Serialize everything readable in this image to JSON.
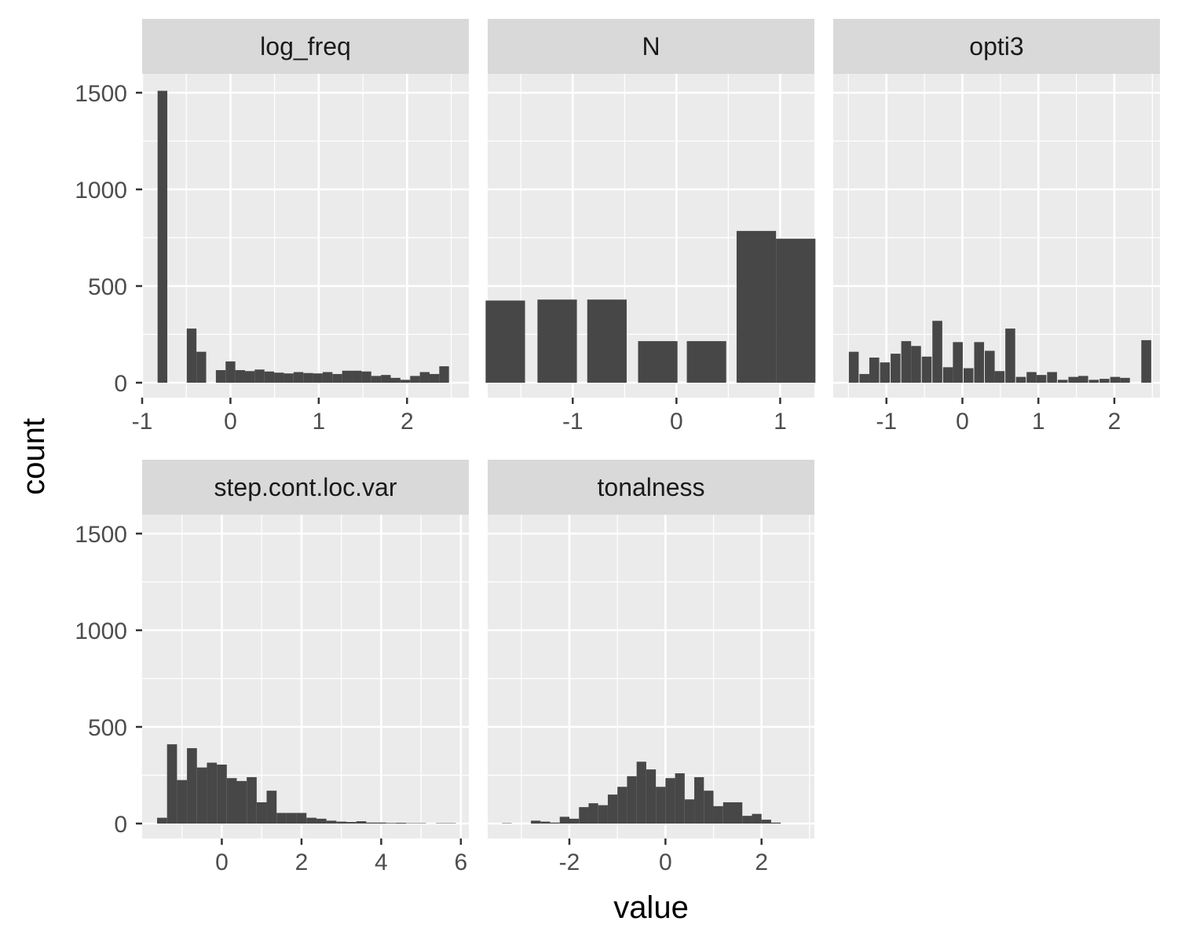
{
  "chart_data": {
    "type": "bar",
    "subtype": "faceted-histogram",
    "xlabel": "value",
    "ylabel": "count",
    "ylim": [
      0,
      1500
    ],
    "yticks": [
      0,
      500,
      1000,
      1500
    ],
    "grid": true,
    "colors": {
      "bar": "#474747",
      "panel_bg": "#ebebeb",
      "strip_bg": "#d9d9d9",
      "grid": "#ffffff",
      "tick_text": "#4d4d4d"
    },
    "facets": [
      {
        "name": "log_freq",
        "xlim": [
          -1,
          2.7
        ],
        "xticks": [
          -1,
          0,
          1,
          2
        ],
        "xtick_labels": [
          "-1",
          "0",
          "1",
          "2"
        ],
        "bins": [
          {
            "x": -0.77,
            "count": 1510
          },
          {
            "x": -0.44,
            "count": 280
          },
          {
            "x": -0.33,
            "count": 160
          },
          {
            "x": -0.11,
            "count": 65
          },
          {
            "x": 0.0,
            "count": 110
          },
          {
            "x": 0.11,
            "count": 65
          },
          {
            "x": 0.22,
            "count": 60
          },
          {
            "x": 0.33,
            "count": 68
          },
          {
            "x": 0.44,
            "count": 58
          },
          {
            "x": 0.55,
            "count": 52
          },
          {
            "x": 0.66,
            "count": 48
          },
          {
            "x": 0.77,
            "count": 55
          },
          {
            "x": 0.88,
            "count": 50
          },
          {
            "x": 0.99,
            "count": 48
          },
          {
            "x": 1.1,
            "count": 55
          },
          {
            "x": 1.21,
            "count": 45
          },
          {
            "x": 1.32,
            "count": 62
          },
          {
            "x": 1.43,
            "count": 62
          },
          {
            "x": 1.54,
            "count": 58
          },
          {
            "x": 1.65,
            "count": 35
          },
          {
            "x": 1.76,
            "count": 40
          },
          {
            "x": 1.87,
            "count": 25
          },
          {
            "x": 1.98,
            "count": 15
          },
          {
            "x": 2.09,
            "count": 35
          },
          {
            "x": 2.2,
            "count": 55
          },
          {
            "x": 2.31,
            "count": 45
          },
          {
            "x": 2.42,
            "count": 85
          }
        ]
      },
      {
        "name": "N",
        "xlim": [
          -1.82,
          1.33
        ],
        "xticks": [
          -1,
          0,
          1
        ],
        "xtick_labels": [
          "-1",
          "0",
          "1"
        ],
        "bins": [
          {
            "x": -1.65,
            "count": 425
          },
          {
            "x": -1.15,
            "count": 430
          },
          {
            "x": -0.67,
            "count": 430
          },
          {
            "x": -0.18,
            "count": 215
          },
          {
            "x": 0.29,
            "count": 215
          },
          {
            "x": 0.77,
            "count": 785
          },
          {
            "x": 1.15,
            "count": 745
          }
        ]
      },
      {
        "name": "opti3",
        "xlim": [
          -1.7,
          2.6
        ],
        "xticks": [
          -1,
          0,
          1,
          2
        ],
        "xtick_labels": [
          "-1",
          "0",
          "1",
          "2"
        ],
        "bins": [
          {
            "x": -1.43,
            "count": 160
          },
          {
            "x": -1.29,
            "count": 45
          },
          {
            "x": -1.16,
            "count": 130
          },
          {
            "x": -1.02,
            "count": 105
          },
          {
            "x": -0.88,
            "count": 150
          },
          {
            "x": -0.74,
            "count": 215
          },
          {
            "x": -0.61,
            "count": 190
          },
          {
            "x": -0.47,
            "count": 135
          },
          {
            "x": -0.33,
            "count": 320
          },
          {
            "x": -0.19,
            "count": 80
          },
          {
            "x": -0.06,
            "count": 210
          },
          {
            "x": 0.08,
            "count": 75
          },
          {
            "x": 0.22,
            "count": 210
          },
          {
            "x": 0.36,
            "count": 165
          },
          {
            "x": 0.49,
            "count": 60
          },
          {
            "x": 0.63,
            "count": 280
          },
          {
            "x": 0.77,
            "count": 30
          },
          {
            "x": 0.91,
            "count": 55
          },
          {
            "x": 1.04,
            "count": 40
          },
          {
            "x": 1.18,
            "count": 55
          },
          {
            "x": 1.32,
            "count": 15
          },
          {
            "x": 1.46,
            "count": 30
          },
          {
            "x": 1.59,
            "count": 35
          },
          {
            "x": 1.73,
            "count": 15
          },
          {
            "x": 1.87,
            "count": 20
          },
          {
            "x": 2.01,
            "count": 30
          },
          {
            "x": 2.14,
            "count": 25
          },
          {
            "x": 2.42,
            "count": 220
          }
        ]
      },
      {
        "name": "step.cont.loc.var",
        "xlim": [
          -2.0,
          6.2
        ],
        "xticks": [
          0,
          2,
          4,
          6
        ],
        "xtick_labels": [
          "0",
          "2",
          "4",
          "6"
        ],
        "bins": [
          {
            "x": -1.5,
            "count": 30
          },
          {
            "x": -1.25,
            "count": 410
          },
          {
            "x": -1.0,
            "count": 225
          },
          {
            "x": -0.75,
            "count": 390
          },
          {
            "x": -0.5,
            "count": 290
          },
          {
            "x": -0.25,
            "count": 315
          },
          {
            "x": 0.0,
            "count": 305
          },
          {
            "x": 0.25,
            "count": 235
          },
          {
            "x": 0.5,
            "count": 220
          },
          {
            "x": 0.75,
            "count": 240
          },
          {
            "x": 1.0,
            "count": 110
          },
          {
            "x": 1.25,
            "count": 170
          },
          {
            "x": 1.5,
            "count": 55
          },
          {
            "x": 1.75,
            "count": 55
          },
          {
            "x": 2.0,
            "count": 55
          },
          {
            "x": 2.25,
            "count": 30
          },
          {
            "x": 2.5,
            "count": 25
          },
          {
            "x": 2.75,
            "count": 15
          },
          {
            "x": 3.0,
            "count": 10
          },
          {
            "x": 3.25,
            "count": 8
          },
          {
            "x": 3.5,
            "count": 12
          },
          {
            "x": 3.75,
            "count": 5
          },
          {
            "x": 4.0,
            "count": 5
          },
          {
            "x": 4.25,
            "count": 3
          },
          {
            "x": 4.5,
            "count": 4
          },
          {
            "x": 4.75,
            "count": 2
          },
          {
            "x": 5.0,
            "count": 2
          },
          {
            "x": 5.5,
            "count": 2
          },
          {
            "x": 5.75,
            "count": 2
          }
        ]
      },
      {
        "name": "tonalness",
        "xlim": [
          -3.7,
          3.1
        ],
        "xticks": [
          -2,
          0,
          2
        ],
        "xtick_labels": [
          "-2",
          "0",
          "2"
        ],
        "bins": [
          {
            "x": -3.3,
            "count": 2
          },
          {
            "x": -2.7,
            "count": 15
          },
          {
            "x": -2.5,
            "count": 10
          },
          {
            "x": -2.3,
            "count": 5
          },
          {
            "x": -2.1,
            "count": 35
          },
          {
            "x": -1.9,
            "count": 25
          },
          {
            "x": -1.7,
            "count": 85
          },
          {
            "x": -1.5,
            "count": 105
          },
          {
            "x": -1.3,
            "count": 95
          },
          {
            "x": -1.1,
            "count": 150
          },
          {
            "x": -0.9,
            "count": 190
          },
          {
            "x": -0.7,
            "count": 245
          },
          {
            "x": -0.5,
            "count": 320
          },
          {
            "x": -0.3,
            "count": 280
          },
          {
            "x": -0.1,
            "count": 190
          },
          {
            "x": 0.1,
            "count": 235
          },
          {
            "x": 0.3,
            "count": 260
          },
          {
            "x": 0.5,
            "count": 125
          },
          {
            "x": 0.7,
            "count": 240
          },
          {
            "x": 0.9,
            "count": 170
          },
          {
            "x": 1.1,
            "count": 90
          },
          {
            "x": 1.3,
            "count": 110
          },
          {
            "x": 1.5,
            "count": 110
          },
          {
            "x": 1.7,
            "count": 40
          },
          {
            "x": 1.9,
            "count": 50
          },
          {
            "x": 2.1,
            "count": 20
          },
          {
            "x": 2.3,
            "count": 5
          }
        ]
      }
    ]
  }
}
